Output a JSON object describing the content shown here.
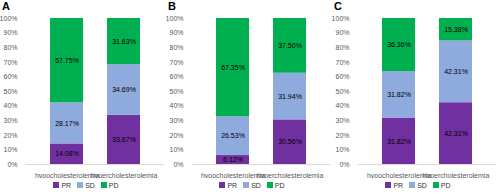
{
  "chart_data": [
    {
      "type": "bar",
      "title": "A",
      "categories": [
        "hypocholesterolemia",
        "hypercholesterolemia"
      ],
      "series": [
        {
          "name": "PR",
          "color": "#7030a0",
          "values": [
            14.08,
            33.67
          ],
          "value_labels": [
            "14.08%",
            "33.67%"
          ]
        },
        {
          "name": "SD",
          "color": "#8faadc",
          "values": [
            28.17,
            34.69
          ],
          "value_labels": [
            "28.17%",
            "34.69%"
          ]
        },
        {
          "name": "PD",
          "color": "#00b050",
          "values": [
            57.75,
            31.63
          ],
          "value_labels": [
            "57.75%",
            "31.63%"
          ]
        }
      ],
      "ylim": [
        0,
        100
      ],
      "yticks": [
        {
          "value": 0,
          "label": "0%"
        },
        {
          "value": 10,
          "label": "10%"
        },
        {
          "value": 20,
          "label": "20%"
        },
        {
          "value": 30,
          "label": "30%"
        },
        {
          "value": 40,
          "label": "40%"
        },
        {
          "value": 50,
          "label": "50%"
        },
        {
          "value": 60,
          "label": "60%"
        },
        {
          "value": 70,
          "label": "70%"
        },
        {
          "value": 80,
          "label": "80%"
        },
        {
          "value": 90,
          "label": "90%"
        },
        {
          "value": 100,
          "label": "100%"
        }
      ],
      "stacked": true,
      "data_labels": true,
      "legend": "bottom"
    },
    {
      "type": "bar",
      "title": "B",
      "categories": [
        "hypocholesterolemia",
        "hypercholesterolemia"
      ],
      "series": [
        {
          "name": "PR",
          "color": "#7030a0",
          "values": [
            6.12,
            30.56
          ],
          "value_labels": [
            "6.12%",
            "30.56%"
          ]
        },
        {
          "name": "SD",
          "color": "#8faadc",
          "values": [
            26.53,
            31.94
          ],
          "value_labels": [
            "26.53%",
            "31.94%"
          ]
        },
        {
          "name": "PD",
          "color": "#00b050",
          "values": [
            67.35,
            37.5
          ],
          "value_labels": [
            "67.35%",
            "37.50%"
          ]
        }
      ],
      "ylim": [
        0,
        100
      ],
      "yticks": [
        {
          "value": 0,
          "label": "0%"
        },
        {
          "value": 10,
          "label": "10%"
        },
        {
          "value": 20,
          "label": "20%"
        },
        {
          "value": 30,
          "label": "30%"
        },
        {
          "value": 40,
          "label": "40%"
        },
        {
          "value": 50,
          "label": "50%"
        },
        {
          "value": 60,
          "label": "60%"
        },
        {
          "value": 70,
          "label": "70%"
        },
        {
          "value": 80,
          "label": "80%"
        },
        {
          "value": 90,
          "label": "90%"
        },
        {
          "value": 100,
          "label": "100%"
        }
      ],
      "stacked": true,
      "data_labels": true,
      "legend": "bottom"
    },
    {
      "type": "bar",
      "title": "C",
      "categories": [
        "hypocholesterolemia",
        "hypercholesterolemia"
      ],
      "series": [
        {
          "name": "PR",
          "color": "#7030a0",
          "values": [
            31.82,
            42.31
          ],
          "value_labels": [
            "31.82%",
            "42.31%"
          ]
        },
        {
          "name": "SD",
          "color": "#8faadc",
          "values": [
            31.82,
            42.31
          ],
          "value_labels": [
            "31.82%",
            "42.31%"
          ]
        },
        {
          "name": "PD",
          "color": "#00b050",
          "values": [
            36.36,
            15.38
          ],
          "value_labels": [
            "36.36%",
            "15.38%"
          ]
        }
      ],
      "ylim": [
        0,
        100
      ],
      "yticks": [
        {
          "value": 0,
          "label": "0%"
        },
        {
          "value": 10,
          "label": "10%"
        },
        {
          "value": 20,
          "label": "20%"
        },
        {
          "value": 30,
          "label": "30%"
        },
        {
          "value": 40,
          "label": "40%"
        },
        {
          "value": 50,
          "label": "50%"
        },
        {
          "value": 60,
          "label": "60%"
        },
        {
          "value": 70,
          "label": "70%"
        },
        {
          "value": 80,
          "label": "80%"
        },
        {
          "value": 90,
          "label": "90%"
        },
        {
          "value": 100,
          "label": "100%"
        }
      ],
      "stacked": true,
      "data_labels": true,
      "legend": "bottom"
    }
  ]
}
